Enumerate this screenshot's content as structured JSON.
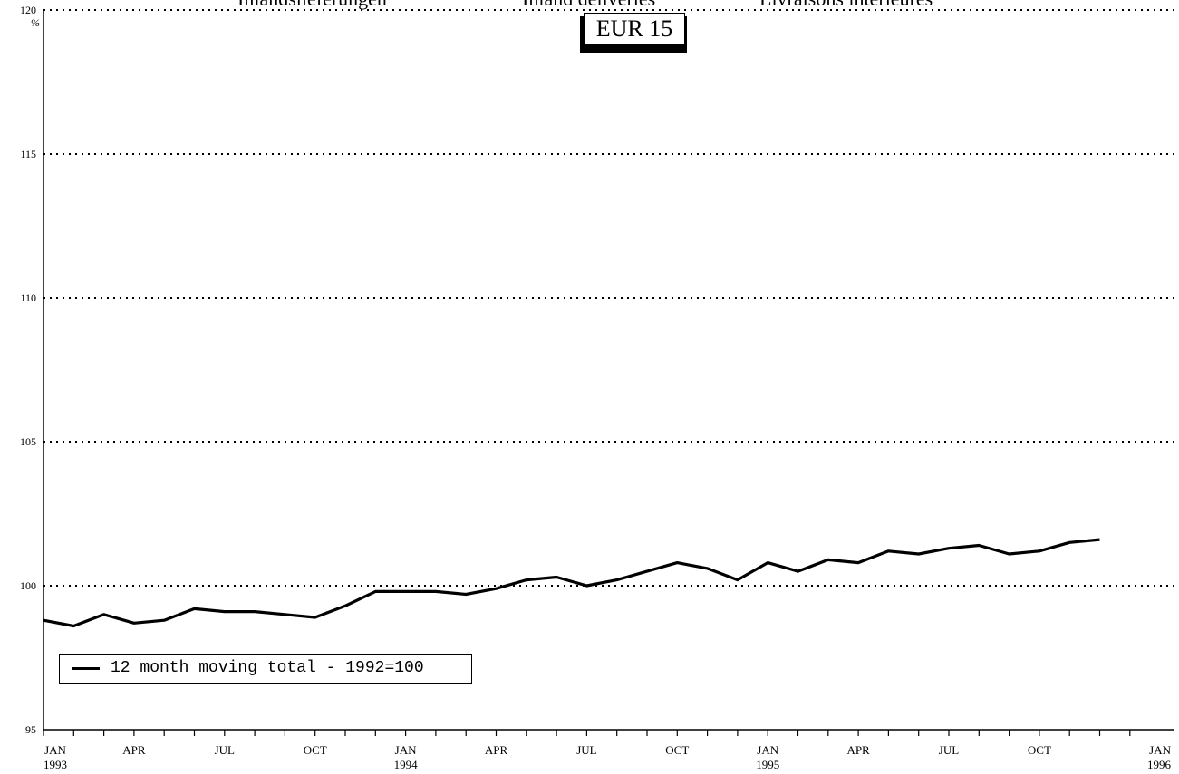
{
  "header": {
    "labels": [
      "Inlandslieferungen",
      "Inland deliveries",
      "Livraisons intérieures"
    ],
    "region": "EUR 15"
  },
  "chart_data": {
    "type": "line",
    "ylim": [
      95,
      120
    ],
    "yticks": [
      95,
      100,
      105,
      110,
      115,
      120
    ],
    "y_unit_label": "%",
    "grid": true,
    "legend_position": "bottom-left",
    "x_tick_labels": [
      {
        "month": "JAN",
        "year": "1993"
      },
      {
        "month": "APR",
        "year": ""
      },
      {
        "month": "JUL",
        "year": ""
      },
      {
        "month": "OCT",
        "year": ""
      },
      {
        "month": "JAN",
        "year": "1994"
      },
      {
        "month": "APR",
        "year": ""
      },
      {
        "month": "JUL",
        "year": ""
      },
      {
        "month": "OCT",
        "year": ""
      },
      {
        "month": "JAN",
        "year": "1995"
      },
      {
        "month": "APR",
        "year": ""
      },
      {
        "month": "JUL",
        "year": ""
      },
      {
        "month": "OCT",
        "year": ""
      },
      {
        "month": "JAN",
        "year": "1996"
      }
    ],
    "series": [
      {
        "name": "12 month moving total - 1992=100",
        "color": "#000000",
        "values": [
          98.8,
          98.6,
          99.0,
          98.7,
          98.8,
          99.2,
          99.1,
          99.1,
          99.0,
          98.9,
          99.3,
          99.8,
          99.8,
          99.8,
          99.7,
          99.9,
          100.2,
          100.3,
          100.0,
          100.2,
          100.5,
          100.8,
          100.6,
          100.2,
          100.8,
          100.5,
          100.9,
          100.8,
          101.2,
          101.1,
          101.3,
          101.4,
          101.1,
          101.2,
          101.5,
          101.6
        ]
      }
    ]
  }
}
